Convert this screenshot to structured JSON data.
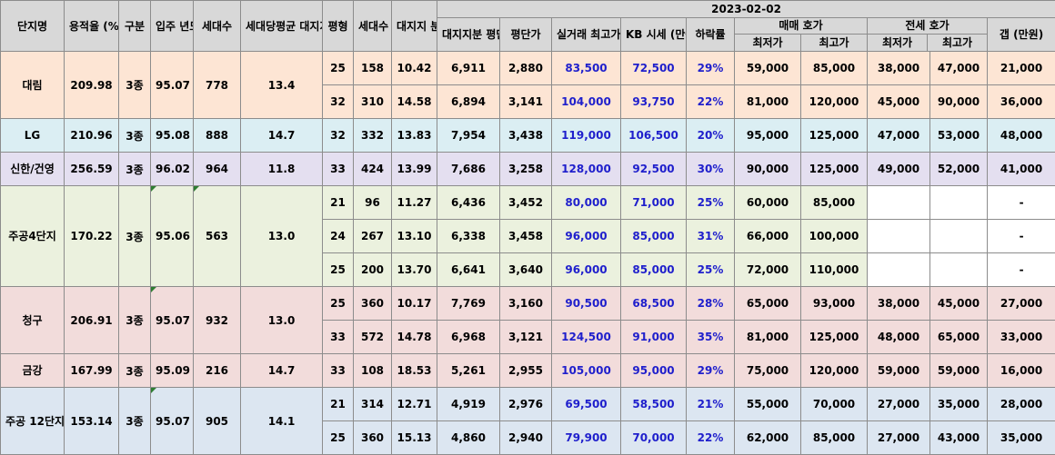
{
  "header": {
    "date": "2023-02-02",
    "complex": "단지명",
    "far": "용적율 (%)",
    "zone": "구분",
    "built": "입주 년도",
    "units": "세대수",
    "land_per_unit": "세대당평균 대지지분(평)",
    "pyeong": "평형",
    "type_units": "세대수",
    "land_share": "대지지 분(평)",
    "land_price": "대지지분 평단가",
    "price_per_py": "평단가",
    "real_max": "실거래 최고가",
    "kb": "KB 시세 (만원)",
    "drop": "하락률",
    "sale": "매매 호가",
    "jeonse": "전세 호가",
    "min": "최저가",
    "max": "최고가",
    "gap": "갭 (만원)"
  },
  "complexes": [
    {
      "name": "대림",
      "far": "209.98",
      "zone": "3종",
      "built": "95.07",
      "units": "778",
      "land": "13.4"
    },
    {
      "name": "LG",
      "far": "210.96",
      "zone": "3종",
      "built": "95.08",
      "units": "888",
      "land": "14.7"
    },
    {
      "name": "신한/건영",
      "far": "256.59",
      "zone": "3종",
      "built": "96.02",
      "units": "964",
      "land": "11.8"
    },
    {
      "name": "주공4단지",
      "far": "170.22",
      "zone": "3종",
      "built": "95.06",
      "units": "563",
      "land": "13.0"
    },
    {
      "name": "청구",
      "far": "206.91",
      "zone": "3종",
      "built": "95.07",
      "units": "932",
      "land": "13.0"
    },
    {
      "name": "금강",
      "far": "167.99",
      "zone": "3종",
      "built": "95.09",
      "units": "216",
      "land": "14.7"
    },
    {
      "name": "주공 12단지",
      "far": "153.14",
      "zone": "3종",
      "built": "95.07",
      "units": "905",
      "land": "14.1"
    }
  ],
  "rows": [
    {
      "py": "25",
      "units": "158",
      "land": "10.42",
      "land_price": "6,911",
      "ppy": "2,880",
      "real": "83,500",
      "kb": "72,500",
      "drop": "29%",
      "smin": "59,000",
      "smax": "85,000",
      "jmin": "38,000",
      "jmax": "47,000",
      "gap": "21,000"
    },
    {
      "py": "32",
      "units": "310",
      "land": "14.58",
      "land_price": "6,894",
      "ppy": "3,141",
      "real": "104,000",
      "kb": "93,750",
      "drop": "22%",
      "smin": "81,000",
      "smax": "120,000",
      "jmin": "45,000",
      "jmax": "90,000",
      "gap": "36,000"
    },
    {
      "py": "32",
      "units": "332",
      "land": "13.83",
      "land_price": "7,954",
      "ppy": "3,438",
      "real": "119,000",
      "kb": "106,500",
      "drop": "20%",
      "smin": "95,000",
      "smax": "125,000",
      "jmin": "47,000",
      "jmax": "53,000",
      "gap": "48,000"
    },
    {
      "py": "33",
      "units": "424",
      "land": "13.99",
      "land_price": "7,686",
      "ppy": "3,258",
      "real": "128,000",
      "kb": "92,500",
      "drop": "30%",
      "smin": "90,000",
      "smax": "125,000",
      "jmin": "49,000",
      "jmax": "52,000",
      "gap": "41,000"
    },
    {
      "py": "21",
      "units": "96",
      "land": "11.27",
      "land_price": "6,436",
      "ppy": "3,452",
      "real": "80,000",
      "kb": "71,000",
      "drop": "25%",
      "smin": "60,000",
      "smax": "85,000",
      "jmin": "",
      "jmax": "",
      "gap": "-"
    },
    {
      "py": "24",
      "units": "267",
      "land": "13.10",
      "land_price": "6,338",
      "ppy": "3,458",
      "real": "96,000",
      "kb": "85,000",
      "drop": "31%",
      "smin": "66,000",
      "smax": "100,000",
      "jmin": "",
      "jmax": "",
      "gap": "-"
    },
    {
      "py": "25",
      "units": "200",
      "land": "13.70",
      "land_price": "6,641",
      "ppy": "3,640",
      "real": "96,000",
      "kb": "85,000",
      "drop": "25%",
      "smin": "72,000",
      "smax": "110,000",
      "jmin": "",
      "jmax": "",
      "gap": "-"
    },
    {
      "py": "25",
      "units": "360",
      "land": "10.17",
      "land_price": "7,769",
      "ppy": "3,160",
      "real": "90,500",
      "kb": "68,500",
      "drop": "28%",
      "smin": "65,000",
      "smax": "93,000",
      "jmin": "38,000",
      "jmax": "45,000",
      "gap": "27,000"
    },
    {
      "py": "33",
      "units": "572",
      "land": "14.78",
      "land_price": "6,968",
      "ppy": "3,121",
      "real": "124,500",
      "kb": "91,000",
      "drop": "35%",
      "smin": "81,000",
      "smax": "125,000",
      "jmin": "48,000",
      "jmax": "65,000",
      "gap": "33,000"
    },
    {
      "py": "33",
      "units": "108",
      "land": "18.53",
      "land_price": "5,261",
      "ppy": "2,955",
      "real": "105,000",
      "kb": "95,000",
      "drop": "29%",
      "smin": "75,000",
      "smax": "120,000",
      "jmin": "59,000",
      "jmax": "59,000",
      "gap": "16,000"
    },
    {
      "py": "21",
      "units": "314",
      "land": "12.71",
      "land_price": "4,919",
      "ppy": "2,976",
      "real": "69,500",
      "kb": "58,500",
      "drop": "21%",
      "smin": "55,000",
      "smax": "70,000",
      "jmin": "27,000",
      "jmax": "35,000",
      "gap": "28,000"
    },
    {
      "py": "25",
      "units": "360",
      "land": "15.13",
      "land_price": "4,860",
      "ppy": "2,940",
      "real": "79,900",
      "kb": "70,000",
      "drop": "22%",
      "smin": "62,000",
      "smax": "85,000",
      "jmin": "27,000",
      "jmax": "43,000",
      "gap": "35,000"
    }
  ],
  "colors": {
    "header": "#d8d8d8",
    "daelim": "#fde5d4",
    "lg": "#dbeef3",
    "shinhan": "#e4dff0",
    "jugong4": "#ebf1de",
    "cheonggu": "#f2dcdb",
    "geumgang": "#f2dcdb",
    "jugong12": "#dce6f1",
    "price_text": "#1f1fcc",
    "comment_marker": "#2e7d32"
  }
}
